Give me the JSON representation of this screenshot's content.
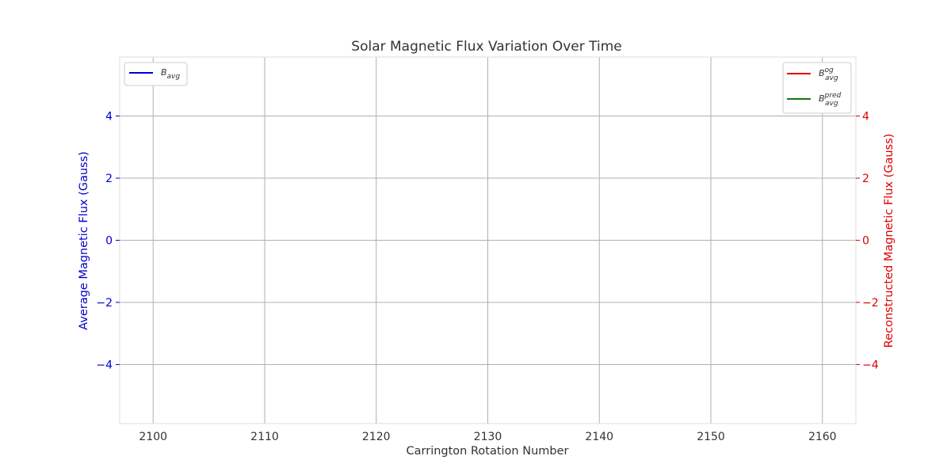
{
  "chart_data": {
    "type": "line",
    "title": "Solar Magnetic Flux Variation Over Time",
    "xlabel": "Carrington Rotation Number",
    "ylabel_left": "Average Magnetic Flux (Gauss)",
    "ylabel_right": "Reconstructed Magnetic Flux (Gauss)",
    "xlim": [
      2097,
      2163
    ],
    "ylim_left": [
      -5.9,
      5.9
    ],
    "ylim_right": [
      -5.9,
      5.9
    ],
    "x_ticks": [
      2100,
      2110,
      2120,
      2130,
      2140,
      2150,
      2160
    ],
    "y_ticks_left": [
      -4,
      -2,
      0,
      2,
      4
    ],
    "y_ticks_right": [
      -4,
      -2,
      0,
      2,
      4
    ],
    "grid": true,
    "series": [
      {
        "name": "B_avg",
        "axis": "left",
        "color": "#0000cc",
        "x": [],
        "y": []
      },
      {
        "name": "B_avg^og",
        "axis": "right",
        "color": "#dd0000",
        "x": [],
        "y": []
      },
      {
        "name": "B_avg^pred",
        "axis": "right",
        "color": "#117711",
        "x": [],
        "y": []
      }
    ],
    "legend_left": {
      "placement": "top-left",
      "entries": [
        {
          "label": "B",
          "sub": "avg",
          "sup": "",
          "color": "#0000cc"
        }
      ]
    },
    "legend_right": {
      "placement": "top-right",
      "entries": [
        {
          "label": "B",
          "sub": "avg",
          "sup": "og",
          "color": "#dd0000"
        },
        {
          "label": "B",
          "sub": "avg",
          "sup": "pred",
          "color": "#117711"
        }
      ]
    },
    "colors": {
      "left_axis": "#0000cc",
      "right_axis": "#dd0000",
      "grid": "#b0b0b0",
      "frame": "#dddddd",
      "text": "#333333"
    }
  }
}
